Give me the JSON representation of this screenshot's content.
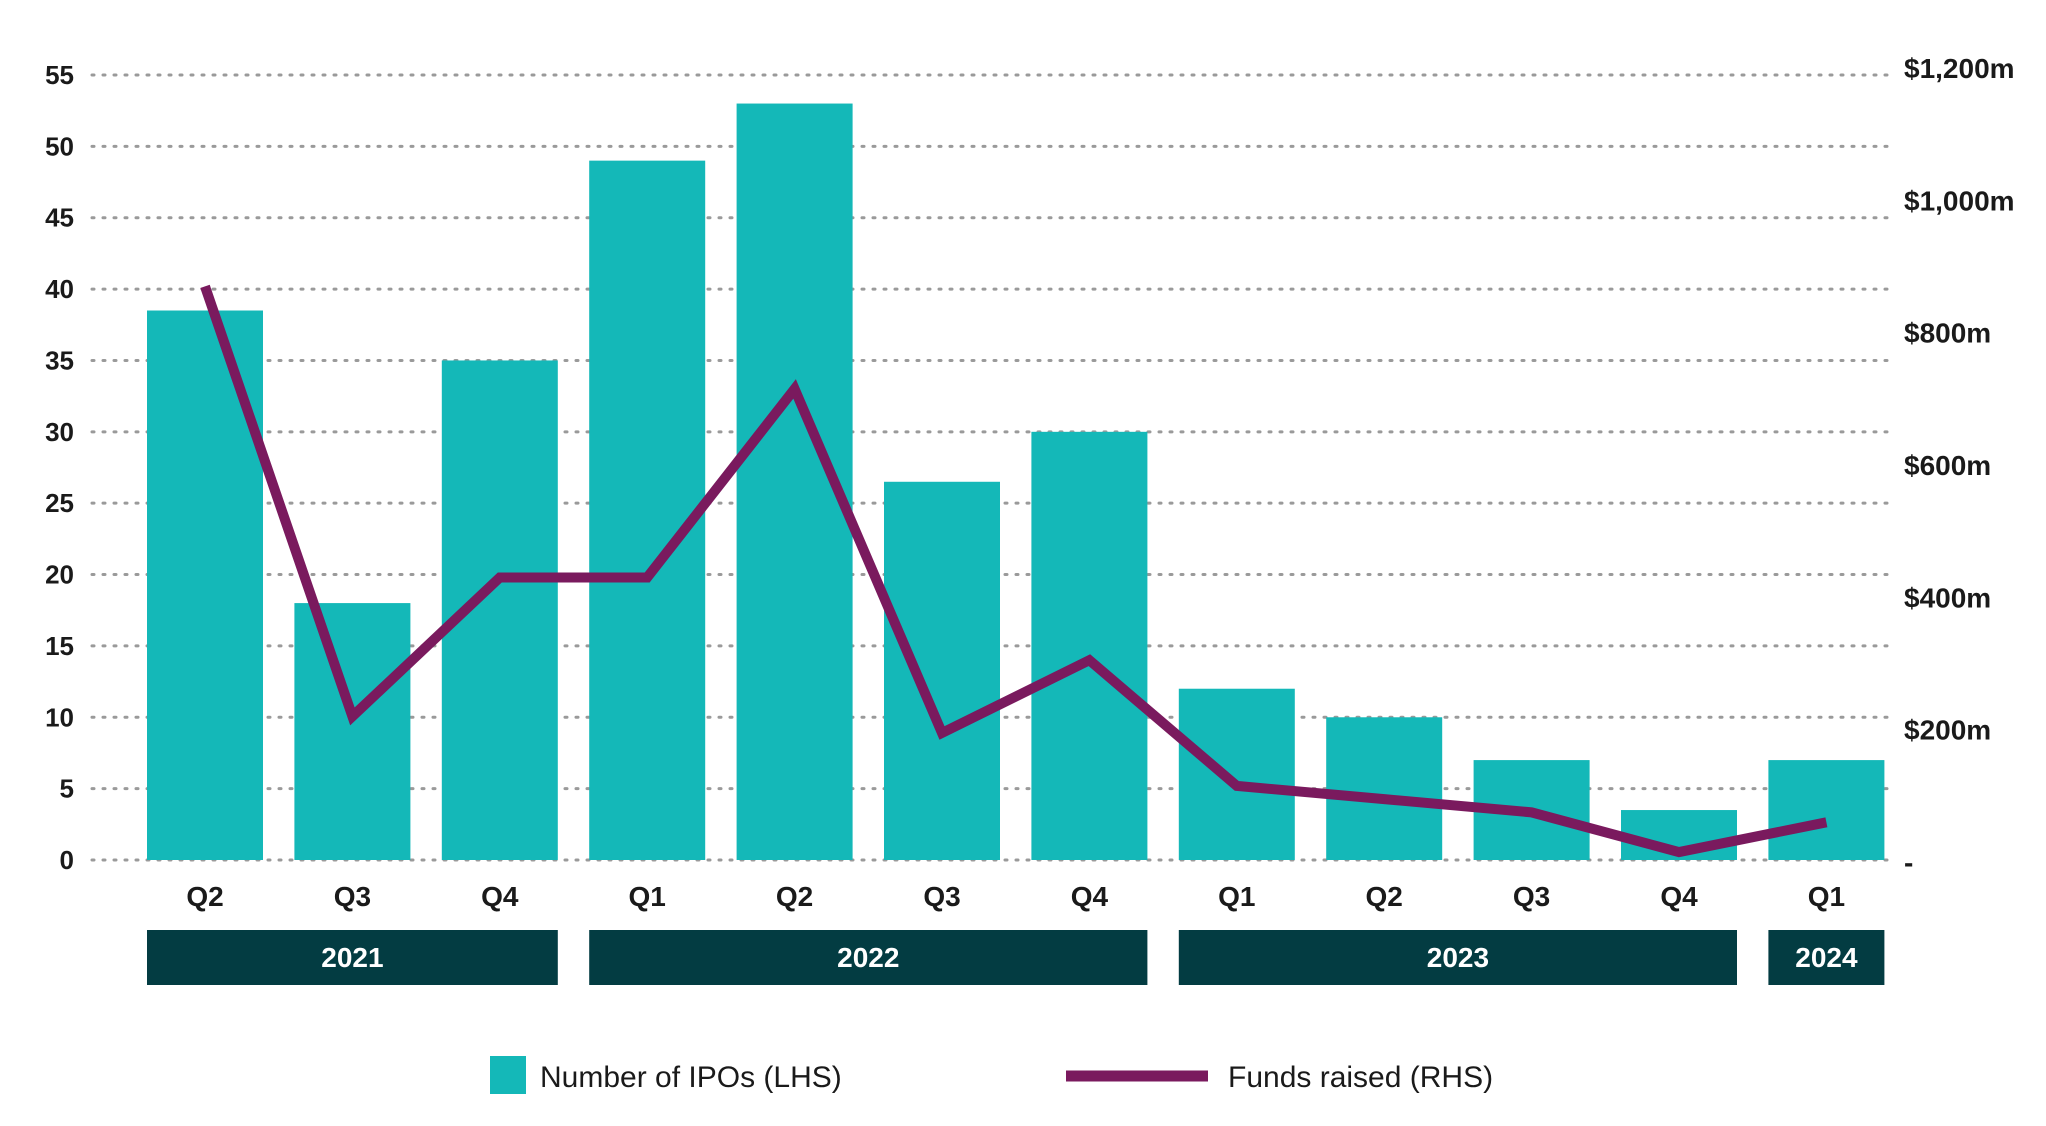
{
  "chart_data": {
    "type": "bar",
    "categories": [
      "Q2",
      "Q3",
      "Q4",
      "Q1",
      "Q2",
      "Q3",
      "Q4",
      "Q1",
      "Q2",
      "Q3",
      "Q4",
      "Q1"
    ],
    "year_groups": [
      {
        "label": "2021",
        "start": 0,
        "end": 2
      },
      {
        "label": "2022",
        "start": 3,
        "end": 6
      },
      {
        "label": "2023",
        "start": 7,
        "end": 10
      },
      {
        "label": "2024",
        "start": 11,
        "end": 11
      }
    ],
    "series": [
      {
        "name": "Number of IPOs (LHS)",
        "type": "bar",
        "axis": "left",
        "color": "#14b8b8",
        "values": [
          38.5,
          18,
          35,
          49,
          53,
          26.5,
          30,
          12,
          10,
          7,
          3.5,
          7
        ]
      },
      {
        "name": "Funds raised (RHS)",
        "type": "line",
        "axis": "right",
        "color": "#7a1a5e",
        "values": [
          870,
          220,
          430,
          430,
          715,
          195,
          305,
          115,
          95,
          75,
          15,
          60
        ]
      }
    ],
    "left_axis": {
      "min": 0,
      "max": 55,
      "step": 5,
      "ticks": [
        "0",
        "5",
        "10",
        "15",
        "20",
        "25",
        "30",
        "35",
        "40",
        "45",
        "50",
        "55"
      ]
    },
    "right_axis": {
      "min": 0,
      "max": 1200,
      "step": 200,
      "ticks": [
        "-",
        "$200m",
        "$400m",
        "$600m",
        "$800m",
        "$1,000m",
        "$1,200m"
      ]
    },
    "grid": "dotted horizontal",
    "legend_position": "bottom",
    "year_band_color": "#033c42"
  }
}
